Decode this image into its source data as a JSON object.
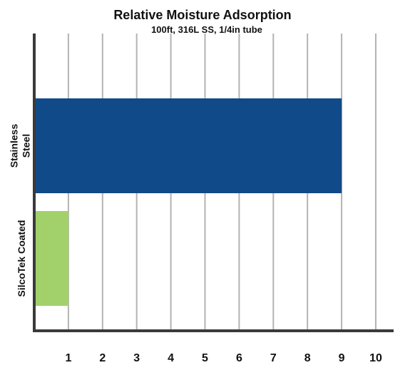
{
  "chart_data": {
    "type": "bar",
    "orientation": "horizontal",
    "title": "Relative Moisture Adsorption",
    "subtitle": "100ft, 316L SS,  1/4in tube",
    "xlabel": "",
    "ylabel": "",
    "xlim": [
      0,
      10
    ],
    "x_ticks": [
      1,
      2,
      3,
      4,
      5,
      6,
      7,
      8,
      9,
      10
    ],
    "grid": "vertical",
    "legend": "none",
    "categories": [
      "Stainless Steel",
      "SilcoTek Coated"
    ],
    "category_lines": [
      [
        "Stainless",
        "Steel"
      ],
      [
        "SilcoTek Coated"
      ]
    ],
    "values": [
      9,
      1
    ],
    "colors": [
      "#104a88",
      "#a2d16b"
    ]
  }
}
